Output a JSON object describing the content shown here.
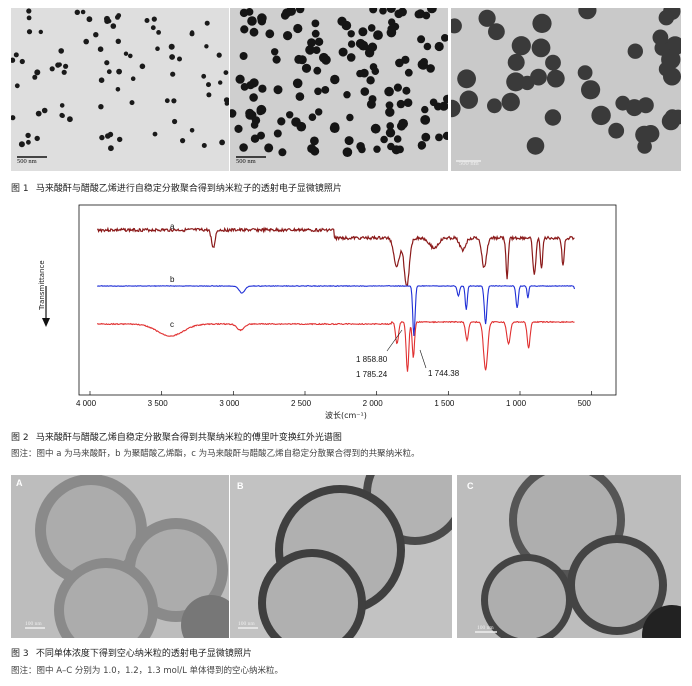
{
  "figure1": {
    "scale_bars": [
      "500 nm",
      "500 nm",
      "500 nm"
    ],
    "number": "图 1",
    "caption": "马来酸酐与醋酸乙烯进行自稳定分散聚合得到纳米粒子的透射电子显微镜照片"
  },
  "figure2": {
    "number": "图 2",
    "caption": "马来酸酐与醋酸乙烯自稳定分散聚合得到共聚纳米粒的傅里叶变换红外光谱图",
    "note": "图注：图中 a 为马来酸酐，b 为聚醋酸乙烯酯，c 为马来酸酐与醋酸乙烯自稳定分散聚合得到的共聚纳米粒。",
    "chart_data": {
      "type": "line",
      "title": "",
      "xlabel": "波长(cm⁻¹)",
      "ylabel": "Transmittance",
      "xlim": [
        4000,
        400
      ],
      "x_ticks": [
        "4 000",
        "3 500",
        "3 000",
        "2 500",
        "2 000",
        "1 500",
        "1 000",
        "500"
      ],
      "series": [
        {
          "name": "a",
          "color": "#8b1a1a"
        },
        {
          "name": "b",
          "color": "#1f2fd6"
        },
        {
          "name": "c",
          "color": "#e03030"
        }
      ],
      "annotations": [
        "1 858.80",
        "1 785.24",
        "1 744.38"
      ]
    }
  },
  "figure3": {
    "panel_labels": [
      "A",
      "B",
      "C"
    ],
    "scale_bars": [
      "100 nm",
      "100 nm",
      "100 nm"
    ],
    "number": "图 3",
    "caption": "不同单体浓度下得到空心纳米粒的透射电子显微镜照片",
    "note": "图注：图中 A–C 分别为 1.0，1.2，1.3 mol/L 单体得到的空心纳米粒。"
  }
}
